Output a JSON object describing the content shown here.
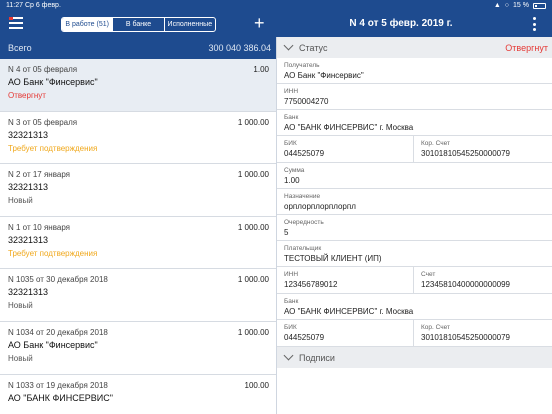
{
  "statusbar": {
    "time": "11:27",
    "date": "Ср 6 февр.",
    "battery": "15 %"
  },
  "navbar": {
    "tabs": [
      {
        "label": "В работе (51)",
        "active": true
      },
      {
        "label": "В банке",
        "active": false
      },
      {
        "label": "Исполненные",
        "active": false
      }
    ],
    "title": "N 4 от 5 февр. 2019 г."
  },
  "summary": {
    "label": "Всего",
    "total": "300 040 386.04"
  },
  "operations": [
    {
      "header": "N 4 от 05 февраля",
      "amount": "1.00",
      "name": "АО Банк \"Финсервис\"",
      "status": "Отвергнут",
      "status_color": "#e53935",
      "selected": true
    },
    {
      "header": "N 3 от 05 февраля",
      "amount": "1 000.00",
      "name": "32321313",
      "status": "Требует подтверждения",
      "status_color": "#f0a81c",
      "selected": false
    },
    {
      "header": "N 2 от 17 января",
      "amount": "1 000.00",
      "name": "32321313",
      "status": "Новый",
      "status_color": "#555555",
      "selected": false
    },
    {
      "header": "N 1 от 10 января",
      "amount": "1 000.00",
      "name": "32321313",
      "status": "Требует подтверждения",
      "status_color": "#f0a81c",
      "selected": false
    },
    {
      "header": "N 1035 от 30 декабря 2018",
      "amount": "1 000.00",
      "name": "32321313",
      "status": "Новый",
      "status_color": "#555555",
      "selected": false
    },
    {
      "header": "N 1034 от 20 декабря 2018",
      "amount": "1 000.00",
      "name": "АО Банк \"Финсервис\"",
      "status": "Новый",
      "status_color": "#555555",
      "selected": false
    },
    {
      "header": "N 1033 от 19 декабря 2018",
      "amount": "100.00",
      "name": "АО \"БАНК ФИНСЕРВИС\"",
      "status": "",
      "status_color": "#555555",
      "selected": false
    }
  ],
  "detail": {
    "status_section": {
      "label": "Статус",
      "value": "Отвергнут"
    },
    "recipient": {
      "label": "Получатель",
      "value": "АО Банк \"Финсервис\""
    },
    "inn": {
      "label": "ИНН",
      "value": "7750004270"
    },
    "bank": {
      "label": "Банк",
      "value": "АО \"БАНК ФИНСЕРВИС\" г. Москва"
    },
    "bik": {
      "label": "БИК",
      "value": "044525079"
    },
    "kor": {
      "label": "Кор. Счет",
      "value": "30101810545250000079"
    },
    "sum": {
      "label": "Сумма",
      "value": "1.00"
    },
    "purpose": {
      "label": "Назначение",
      "value": "орплорплорплорпл"
    },
    "priority": {
      "label": "Очередность",
      "value": "5"
    },
    "payer": {
      "label": "Плательщик",
      "value": "ТЕСТОВЫЙ КЛИЕНТ (ИП)"
    },
    "payer_inn": {
      "label": "ИНН",
      "value": "123456789012"
    },
    "payer_acc": {
      "label": "Счет",
      "value": "12345810400000000099"
    },
    "payer_bank": {
      "label": "Банк",
      "value": "АО \"БАНК ФИНСЕРВИС\" г. Москва"
    },
    "payer_bik": {
      "label": "БИК",
      "value": "044525079"
    },
    "payer_kor": {
      "label": "Кор. Счет",
      "value": "30101810545250000079"
    },
    "sign_section": {
      "label": "Подписи"
    }
  }
}
